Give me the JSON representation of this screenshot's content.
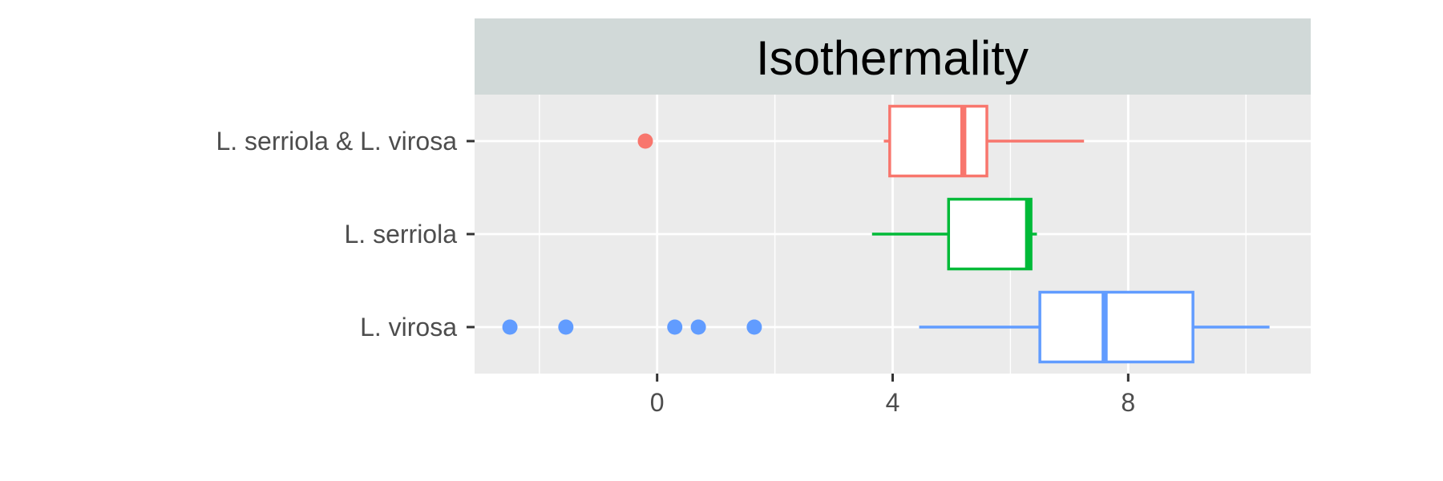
{
  "chart_data": {
    "type": "boxplot",
    "title": "Isothermality",
    "xlabel": "",
    "ylabel": "",
    "xlim": [
      -3.1,
      11.1
    ],
    "x_ticks": [
      0,
      4,
      8
    ],
    "x_tick_labels": [
      "0",
      "4",
      "8"
    ],
    "x_minor_gridlines": [
      -2,
      2,
      6,
      10
    ],
    "grid": true,
    "legend": "none",
    "categories": [
      "L. serriola & L. virosa",
      "L. serriola",
      "L. virosa"
    ],
    "series": [
      {
        "category": "L. serriola & L. virosa",
        "color": "#F8766D",
        "whisker_low": 3.85,
        "q1": 3.95,
        "median": 5.2,
        "q3": 5.6,
        "whisker_high": 7.25,
        "outliers": [
          -0.2
        ]
      },
      {
        "category": "L. serriola",
        "color": "#00BA38",
        "whisker_low": 3.65,
        "q1": 4.95,
        "median": 6.3,
        "q3": 6.35,
        "whisker_high": 6.45,
        "outliers": []
      },
      {
        "category": "L. virosa",
        "color": "#619CFF",
        "whisker_low": 4.45,
        "q1": 6.5,
        "median": 7.6,
        "q3": 9.1,
        "whisker_high": 10.4,
        "outliers": [
          -2.5,
          -1.55,
          0.3,
          0.7,
          1.65
        ]
      }
    ]
  }
}
